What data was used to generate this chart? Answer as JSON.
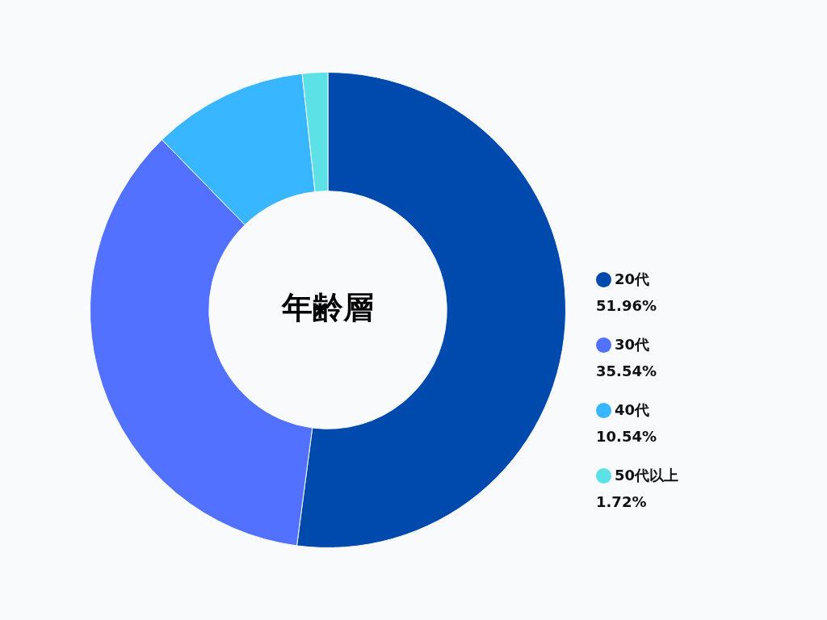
{
  "chart_data": {
    "type": "donut",
    "title": "年齢層",
    "categories": [
      "20代",
      "30代",
      "40代",
      "50代以上"
    ],
    "values": [
      51.96,
      35.54,
      10.54,
      1.72
    ],
    "value_labels": [
      "51.96%",
      "35.54%",
      "10.54%",
      "1.72%"
    ],
    "colors": [
      "#004aad",
      "#5271ff",
      "#38b6ff",
      "#5ce1e6"
    ],
    "legend": "right"
  }
}
